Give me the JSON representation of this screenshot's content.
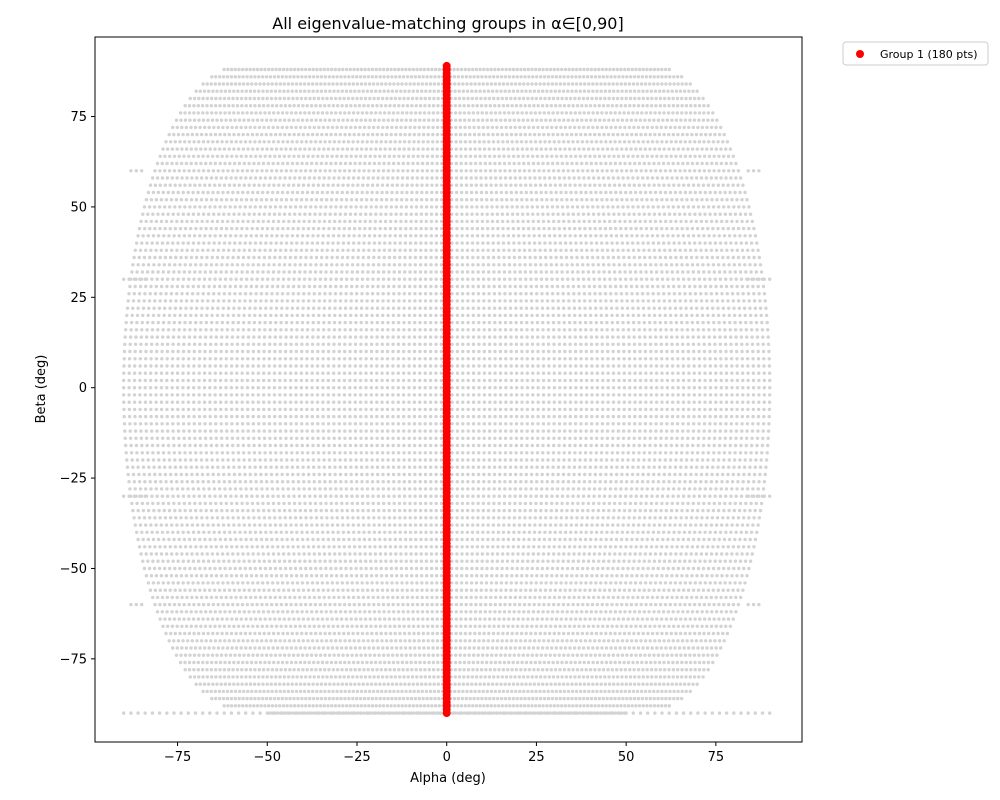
{
  "chart_data": {
    "type": "scatter",
    "title": "All eigenvalue-matching groups in α∈[0,90]",
    "xlabel": "Alpha (deg)",
    "ylabel": "Beta (deg)",
    "xlim": [
      -98,
      99
    ],
    "ylim": [
      -98,
      97
    ],
    "x_ticks": [
      -75,
      -50,
      -25,
      0,
      25,
      50,
      75
    ],
    "y_ticks": [
      -75,
      -50,
      -25,
      0,
      25,
      50,
      75
    ],
    "x_tick_labels": [
      "−75",
      "−50",
      "−25",
      "0",
      "25",
      "50",
      "75"
    ],
    "y_tick_labels": [
      "−75",
      "−50",
      "−25",
      "0",
      "25",
      "50",
      "75"
    ],
    "grid": false,
    "legend_position": "outside-top-right",
    "background_points": {
      "color": "#d3d3d3",
      "description_x_range": [
        -90,
        90
      ],
      "description_y_range": [
        -90,
        89
      ]
    },
    "series": [
      {
        "name": "Group 1 (180 pts)",
        "color": "#ff0000",
        "x": 0,
        "y_range": [
          -90,
          89
        ],
        "count": 180
      }
    ]
  }
}
